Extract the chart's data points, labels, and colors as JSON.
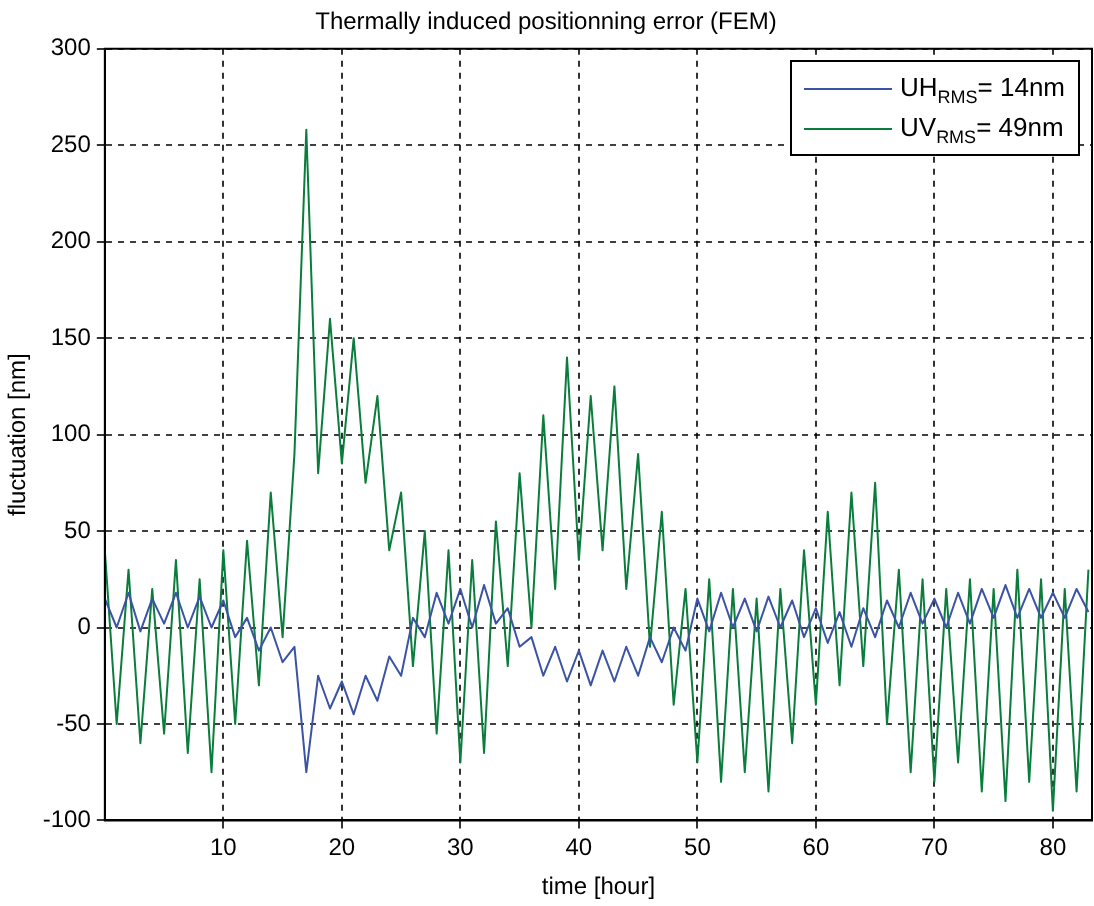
{
  "chart_data": {
    "type": "line",
    "title": "Thermally induced positionning error (FEM)",
    "xlabel": "time [hour]",
    "ylabel": "fluctuation [nm]",
    "x": [
      0,
      1,
      2,
      3,
      4,
      5,
      6,
      7,
      8,
      9,
      10,
      11,
      12,
      13,
      14,
      15,
      16,
      17,
      18,
      19,
      20,
      21,
      22,
      23,
      24,
      25,
      26,
      27,
      28,
      29,
      30,
      31,
      32,
      33,
      34,
      35,
      36,
      37,
      38,
      39,
      40,
      41,
      42,
      43,
      44,
      45,
      46,
      47,
      48,
      49,
      50,
      51,
      52,
      53,
      54,
      55,
      56,
      57,
      58,
      59,
      60,
      61,
      62,
      63,
      64,
      65,
      66,
      67,
      68,
      69,
      70,
      71,
      72,
      73,
      74,
      75,
      76,
      77,
      78,
      79,
      80,
      81,
      82,
      83
    ],
    "series": [
      {
        "name": "UH$_{RMS}$= 14nm",
        "color": "#3a53a4",
        "values": [
          15,
          0,
          18,
          -2,
          15,
          2,
          18,
          0,
          16,
          0,
          14,
          -5,
          5,
          -12,
          0,
          -18,
          -10,
          -75,
          -25,
          -42,
          -28,
          -45,
          -25,
          -38,
          -15,
          -25,
          5,
          -5,
          18,
          2,
          20,
          0,
          22,
          2,
          10,
          -10,
          -5,
          -25,
          -10,
          -28,
          -12,
          -30,
          -12,
          -28,
          -10,
          -25,
          -5,
          -18,
          0,
          -12,
          15,
          -2,
          18,
          0,
          15,
          -2,
          16,
          0,
          14,
          -5,
          10,
          -8,
          8,
          -10,
          10,
          -5,
          14,
          0,
          18,
          2,
          15,
          0,
          18,
          2,
          20,
          5,
          22,
          5,
          20,
          5,
          18,
          5,
          20,
          8
        ]
      },
      {
        "name": "UV$_{RMS}$= 49nm",
        "color": "#0a7d3c",
        "values": [
          40,
          -50,
          30,
          -60,
          20,
          -55,
          35,
          -65,
          25,
          -75,
          40,
          -50,
          45,
          -30,
          70,
          -5,
          90,
          258,
          80,
          160,
          85,
          150,
          75,
          120,
          40,
          70,
          -20,
          50,
          -55,
          40,
          -70,
          35,
          -65,
          55,
          -20,
          80,
          0,
          110,
          20,
          140,
          35,
          120,
          40,
          125,
          20,
          90,
          -10,
          60,
          -40,
          20,
          -70,
          25,
          -80,
          20,
          -75,
          15,
          -85,
          20,
          -60,
          40,
          -40,
          60,
          -30,
          70,
          -20,
          75,
          -50,
          30,
          -75,
          25,
          -80,
          20,
          -70,
          25,
          -85,
          20,
          -90,
          30,
          -80,
          25,
          -95,
          20,
          -85,
          30
        ]
      }
    ],
    "xlim": [
      0,
      83.3
    ],
    "xticks": [
      10,
      20,
      30,
      40,
      50,
      60,
      70,
      80
    ],
    "ylim": [
      -100,
      300
    ],
    "yticks": [
      -100,
      -50,
      0,
      50,
      100,
      150,
      200,
      250,
      300
    ],
    "grid": true,
    "legend": "top right",
    "line_style": "solid",
    "marker": "none"
  }
}
